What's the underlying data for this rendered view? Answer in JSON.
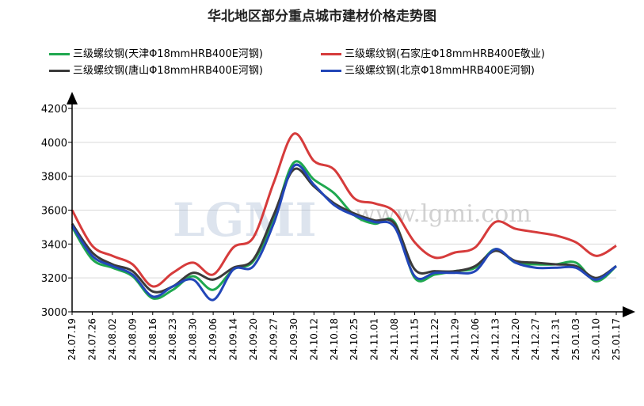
{
  "chart_data": {
    "type": "line",
    "title": "华北地区部分重点城市建材价格走势图",
    "watermark": {
      "logo": "LGMI",
      "url": "www.lgmi.com"
    },
    "ylim": [
      3000,
      4200
    ],
    "yticks": [
      3000,
      3200,
      3400,
      3600,
      3800,
      4000,
      4200
    ],
    "grid": true,
    "legend": "top",
    "categories": [
      "24.07.19",
      "24.07.26",
      "24.08.02",
      "24.08.09",
      "24.08.16",
      "24.08.23",
      "24.08.30",
      "24.09.06",
      "24.09.14",
      "24.09.20",
      "24.09.27",
      "24.09.30",
      "24.10.12",
      "24.10.18",
      "24.10.25",
      "24.11.01",
      "24.11.08",
      "24.11.15",
      "24.11.22",
      "24.11.29",
      "24.12.06",
      "24.12.13",
      "24.12.20",
      "24.12.27",
      "24.12.31",
      "25.01.03",
      "25.01.10",
      "25.01.17"
    ],
    "series": [
      {
        "name": "三级螺纹钢(天津Φ18mmHRB400E河钢)",
        "color": "#1fa84f",
        "values": [
          3500,
          3310,
          3260,
          3210,
          3080,
          3130,
          3210,
          3130,
          3250,
          3300,
          3550,
          3880,
          3780,
          3700,
          3570,
          3520,
          3530,
          3200,
          3220,
          3240,
          3260,
          3370,
          3290,
          3280,
          3280,
          3290,
          3180,
          3270
        ]
      },
      {
        "name": "三级螺纹钢(石家庄Φ18mmHRB400E敬业)",
        "color": "#d63b3b",
        "values": [
          3600,
          3390,
          3330,
          3280,
          3150,
          3230,
          3290,
          3220,
          3380,
          3440,
          3760,
          4050,
          3890,
          3840,
          3670,
          3640,
          3590,
          3410,
          3320,
          3350,
          3380,
          3530,
          3490,
          3470,
          3450,
          3410,
          3330,
          3390
        ]
      },
      {
        "name": "三级螺纹钢(唐山Φ18mmHRB400E河钢)",
        "color": "#3a3a3a",
        "values": [
          3520,
          3350,
          3280,
          3240,
          3120,
          3150,
          3230,
          3190,
          3260,
          3310,
          3570,
          3840,
          3740,
          3640,
          3580,
          3540,
          3520,
          3250,
          3240,
          3240,
          3270,
          3360,
          3300,
          3290,
          3280,
          3270,
          3200,
          3270
        ]
      },
      {
        "name": "三级螺纹钢(北京Φ18mmHRB400E河钢)",
        "color": "#2246b8",
        "values": [
          3510,
          3330,
          3270,
          3220,
          3090,
          3150,
          3190,
          3070,
          3250,
          3270,
          3520,
          3860,
          3750,
          3630,
          3570,
          3530,
          3500,
          3210,
          3230,
          3230,
          3240,
          3370,
          3290,
          3260,
          3260,
          3260,
          3190,
          3270
        ]
      }
    ]
  }
}
